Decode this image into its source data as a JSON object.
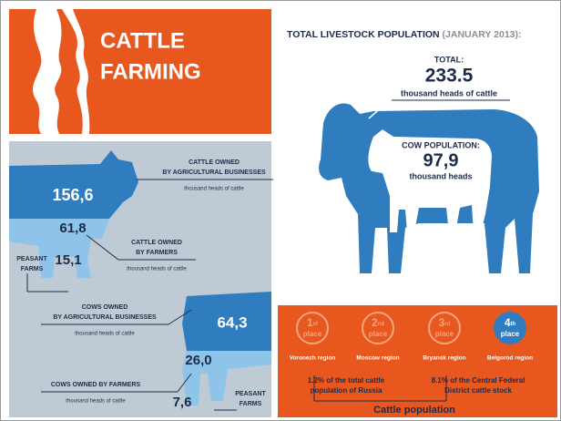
{
  "header": {
    "title_lines": [
      "CATTLE",
      "FARMING"
    ]
  },
  "left_panel": {
    "cattle": {
      "agricultural_businesses": {
        "value": "156,6",
        "lines": [
          "CATTLE OWNED",
          "BY AGRICULTURAL BUSINESSES"
        ],
        "unit": "thousand heads of cattle"
      },
      "farmers": {
        "value": "61,8",
        "lines": [
          "CATTLE OWNED",
          "BY FARMERS"
        ],
        "unit": "thousand heads of cattle"
      },
      "peasant_farms": {
        "value": "15,1",
        "lines": [
          "PEASANT",
          "FARMS"
        ]
      }
    },
    "cows": {
      "agricultural_businesses": {
        "value": "64,3",
        "lines": [
          "COWS OWNED",
          "BY AGRICULTURAL BUSINESSES"
        ],
        "unit": "thousand heads of cattle"
      },
      "farmers": {
        "value": "26,0",
        "lines": [
          "COWS OWNED BY FARMERS"
        ],
        "unit": "thousand heads of cattle"
      },
      "peasant_farms": {
        "value": "7,6",
        "lines": [
          "PEASANT",
          "FARMS"
        ]
      }
    }
  },
  "right_panel": {
    "title": "TOTAL LIVESTOCK POPULATION",
    "title_date": "(JANUARY 2013):",
    "total": {
      "label": "TOTAL:",
      "value": "233.5",
      "unit": "thousand heads of cattle"
    },
    "cows": {
      "label": "COW POPULATION:",
      "value": "97,9",
      "unit": "thousand heads"
    },
    "ranking": [
      {
        "rank": "1",
        "suffix": "st",
        "word": "place",
        "region": "Voronezh region"
      },
      {
        "rank": "2",
        "suffix": "nd",
        "word": "place",
        "region": "Moscow region"
      },
      {
        "rank": "3",
        "suffix": "rd",
        "word": "place",
        "region": "Bryansk region"
      },
      {
        "rank": "4",
        "suffix": "th",
        "word": "place",
        "region": "Belgorod region"
      }
    ],
    "notes": [
      [
        "1.2% of the total cattle",
        "population of Russia"
      ],
      [
        "8.1% of the Central Federal",
        "District cattle stock"
      ]
    ],
    "footer": "Cattle population"
  }
}
